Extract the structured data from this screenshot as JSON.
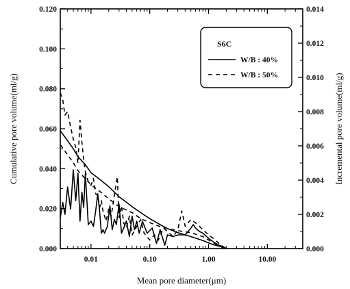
{
  "chart_data": {
    "type": "line",
    "xlabel": "Mean pore diameter(μm)",
    "ylabel_left": "Cumulative pore volume(ml/g)",
    "ylabel_right": "Incremental pore volume(ml/g)",
    "x_scale": "log",
    "xlim": [
      0.003,
      40
    ],
    "ylim_left": [
      0,
      0.12
    ],
    "ylim_right": [
      0,
      0.014
    ],
    "x_ticks": [
      0.01,
      0.1,
      1,
      10
    ],
    "x_tick_labels": [
      "0.01",
      "0.10",
      "1.00",
      "10.00"
    ],
    "y_left_ticks": [
      0,
      0.02,
      0.04,
      0.06,
      0.08,
      0.1,
      0.12
    ],
    "y_left_tick_labels": [
      "0.000",
      "0.020",
      "0.040",
      "0.060",
      "0.080",
      "0.100",
      "0.120"
    ],
    "y_right_ticks": [
      0,
      0.002,
      0.004,
      0.006,
      0.008,
      0.01,
      0.012,
      0.014
    ],
    "y_right_tick_labels": [
      "0.000",
      "0.002",
      "0.004",
      "0.006",
      "0.008",
      "0.010",
      "0.012",
      "0.014"
    ],
    "grid": false,
    "legend": {
      "title": "S6C",
      "placement": "top-right",
      "entries": [
        {
          "label": "W/B : 40%",
          "style": "solid"
        },
        {
          "label": "W/B : 50%",
          "style": "dashed"
        }
      ]
    },
    "series": [
      {
        "name": "W/B : 40%",
        "kind": "cumulative",
        "axis": "left",
        "style": "solid",
        "x": [
          0.003,
          0.004,
          0.005,
          0.006,
          0.008,
          0.01,
          0.015,
          0.02,
          0.03,
          0.05,
          0.07,
          0.1,
          0.15,
          0.2,
          0.3,
          0.5,
          0.8,
          1.2,
          1.6,
          1.9
        ],
        "y": [
          0.059,
          0.054,
          0.05,
          0.046,
          0.042,
          0.038,
          0.034,
          0.031,
          0.026,
          0.021,
          0.018,
          0.015,
          0.012,
          0.01,
          0.008,
          0.006,
          0.004,
          0.002,
          0.001,
          0.0
        ]
      },
      {
        "name": "W/B : 50%",
        "kind": "cumulative",
        "axis": "left",
        "style": "dashed",
        "x": [
          0.003,
          0.004,
          0.005,
          0.006,
          0.008,
          0.01,
          0.015,
          0.02,
          0.03,
          0.05,
          0.07,
          0.1,
          0.15,
          0.2,
          0.3,
          0.5,
          0.8,
          1.2,
          1.6,
          1.9
        ],
        "y": [
          0.052,
          0.047,
          0.043,
          0.039,
          0.035,
          0.032,
          0.028,
          0.025,
          0.021,
          0.018,
          0.015,
          0.013,
          0.011,
          0.01,
          0.009,
          0.008,
          0.006,
          0.003,
          0.001,
          0.0
        ]
      },
      {
        "name": "W/B : 40%",
        "kind": "incremental",
        "axis": "right",
        "style": "solid",
        "x": [
          0.003,
          0.0033,
          0.0036,
          0.004,
          0.0045,
          0.005,
          0.0055,
          0.006,
          0.0065,
          0.007,
          0.0075,
          0.008,
          0.009,
          0.01,
          0.011,
          0.012,
          0.013,
          0.014,
          0.015,
          0.016,
          0.017,
          0.019,
          0.021,
          0.023,
          0.025,
          0.027,
          0.03,
          0.033,
          0.036,
          0.04,
          0.045,
          0.05,
          0.055,
          0.06,
          0.066,
          0.075,
          0.09,
          0.11,
          0.13,
          0.15,
          0.18,
          0.2,
          0.25,
          0.3,
          0.4,
          0.5,
          0.55,
          0.6,
          0.7,
          0.8,
          1.0,
          1.2,
          1.5,
          1.8,
          2.0
        ],
        "y": [
          0.0018,
          0.0027,
          0.002,
          0.0036,
          0.0023,
          0.0046,
          0.0028,
          0.0044,
          0.0016,
          0.0033,
          0.0024,
          0.0044,
          0.0014,
          0.0016,
          0.0013,
          0.0022,
          0.0032,
          0.0022,
          0.0009,
          0.0011,
          0.0009,
          0.0013,
          0.0025,
          0.0011,
          0.0017,
          0.0014,
          0.0026,
          0.0009,
          0.0012,
          0.0016,
          0.0007,
          0.0019,
          0.0011,
          0.0016,
          0.0009,
          0.0016,
          0.0009,
          0.0012,
          0.0003,
          0.0011,
          0.0002,
          0.0008,
          0.0007,
          0.0008,
          0.0008,
          0.0012,
          0.0014,
          0.0012,
          0.001,
          0.0009,
          0.0006,
          0.0004,
          0.0002,
          0.0001,
          0.0
        ]
      },
      {
        "name": "W/B : 50%",
        "kind": "incremental",
        "axis": "right",
        "style": "dashed",
        "x": [
          0.003,
          0.0033,
          0.0036,
          0.004,
          0.0045,
          0.005,
          0.0055,
          0.006,
          0.0065,
          0.007,
          0.0075,
          0.008,
          0.009,
          0.01,
          0.011,
          0.012,
          0.013,
          0.014,
          0.015,
          0.016,
          0.018,
          0.02,
          0.022,
          0.025,
          0.028,
          0.03,
          0.033,
          0.036,
          0.04,
          0.045,
          0.05,
          0.06,
          0.07,
          0.08,
          0.1,
          0.12,
          0.14,
          0.17,
          0.2,
          0.25,
          0.3,
          0.35,
          0.4,
          0.5,
          0.6,
          0.7,
          0.8,
          1.0,
          1.2,
          1.5,
          1.8,
          2.0
        ],
        "y": [
          0.0091,
          0.0087,
          0.0078,
          0.008,
          0.0071,
          0.0064,
          0.0059,
          0.005,
          0.0075,
          0.0062,
          0.0052,
          0.0045,
          0.0039,
          0.0037,
          0.0041,
          0.0032,
          0.0031,
          0.0024,
          0.0028,
          0.0022,
          0.0016,
          0.0023,
          0.0019,
          0.0031,
          0.0042,
          0.0018,
          0.0025,
          0.0015,
          0.0012,
          0.0019,
          0.0008,
          0.0013,
          0.0017,
          0.0009,
          0.0005,
          0.0008,
          0.0005,
          0.0012,
          0.001,
          0.0007,
          0.0011,
          0.0022,
          0.0013,
          0.0017,
          0.0015,
          0.0013,
          0.0011,
          0.0008,
          0.0006,
          0.0003,
          0.0001,
          0.0
        ]
      }
    ]
  }
}
